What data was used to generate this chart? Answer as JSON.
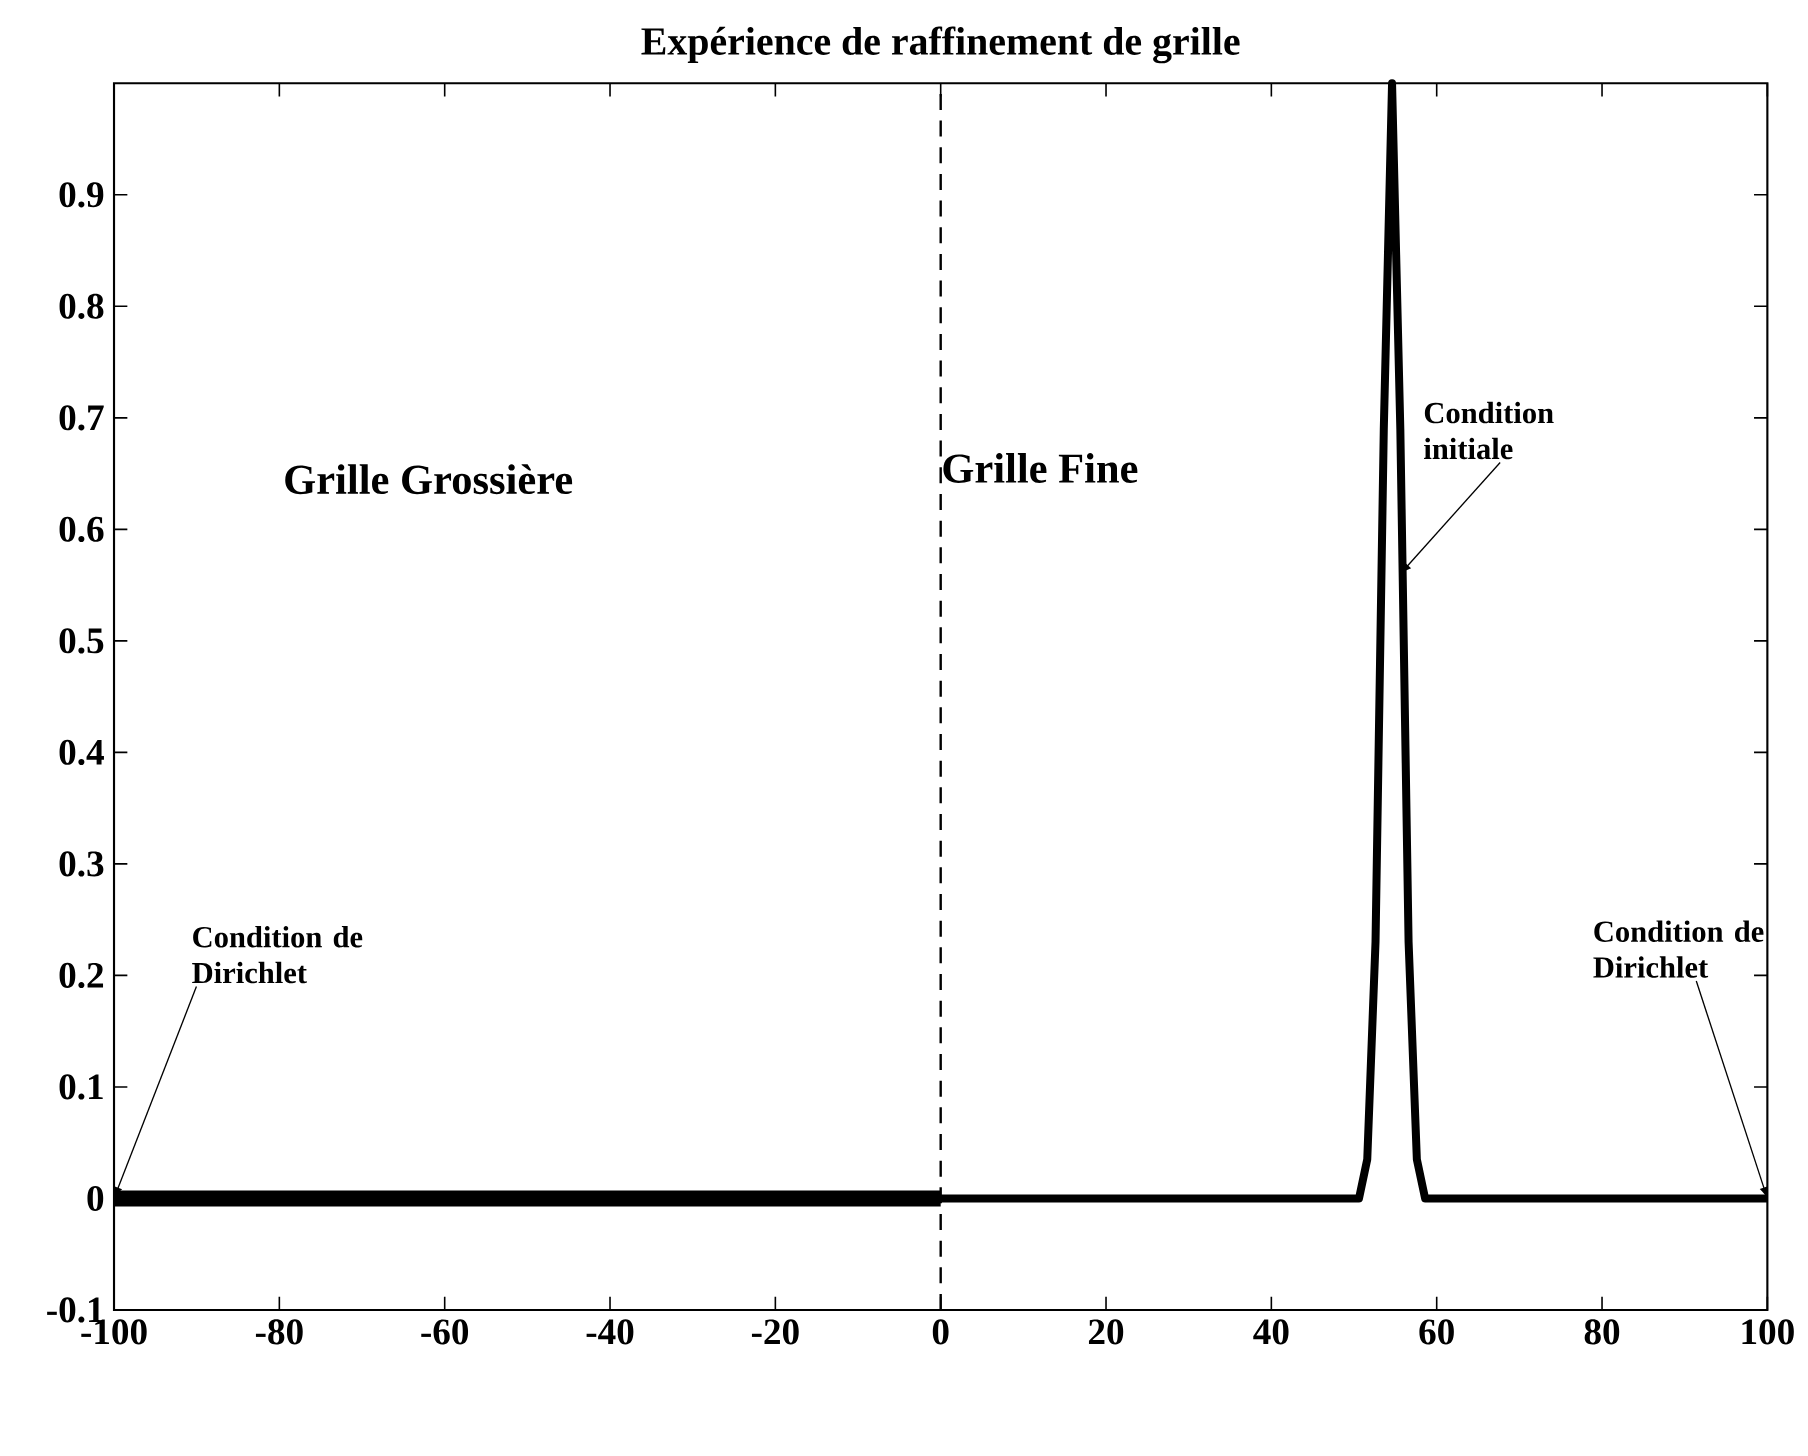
{
  "chart_data": {
    "type": "line",
    "title": "Expérience de raffinement de grille",
    "xlim": [
      -100,
      100
    ],
    "ylim": [
      -0.1,
      1
    ],
    "xticks": [
      -100,
      -80,
      -60,
      -40,
      -20,
      0,
      20,
      40,
      60,
      80,
      100
    ],
    "yticks": [
      -0.1,
      0,
      0.1,
      0.2,
      0.3,
      0.4,
      0.5,
      0.6,
      0.7,
      0.8,
      0.9
    ],
    "series": [
      {
        "color": "#000000",
        "line_style": "solid",
        "x": [
          -100,
          -50,
          0
        ],
        "values": [
          0,
          0,
          0
        ]
      },
      {
        "color": "#000000",
        "line_style": "solid",
        "x": [
          0,
          50.6,
          51.6,
          52.6,
          53.6,
          54.6,
          55.6,
          56.6,
          57.6,
          58.6,
          100
        ],
        "values": [
          0,
          0,
          0.035,
          0.23,
          0.69,
          1,
          0.69,
          0.23,
          0.035,
          0,
          0
        ]
      }
    ],
    "ref_lines": [
      {
        "axis": "x",
        "value": 0,
        "line_style": "dashed",
        "color": "#000000"
      }
    ],
    "annotations": [
      "Grille Grossière",
      "Grille Fine",
      {
        "text": "Condition initiale",
        "x": 55.6,
        "y": 0.56
      },
      {
        "text": "Condition de Dirichlet",
        "x": -100,
        "y": 0
      },
      {
        "text": "Condition de Dirichlet",
        "x": 100,
        "y": 0
      }
    ]
  }
}
